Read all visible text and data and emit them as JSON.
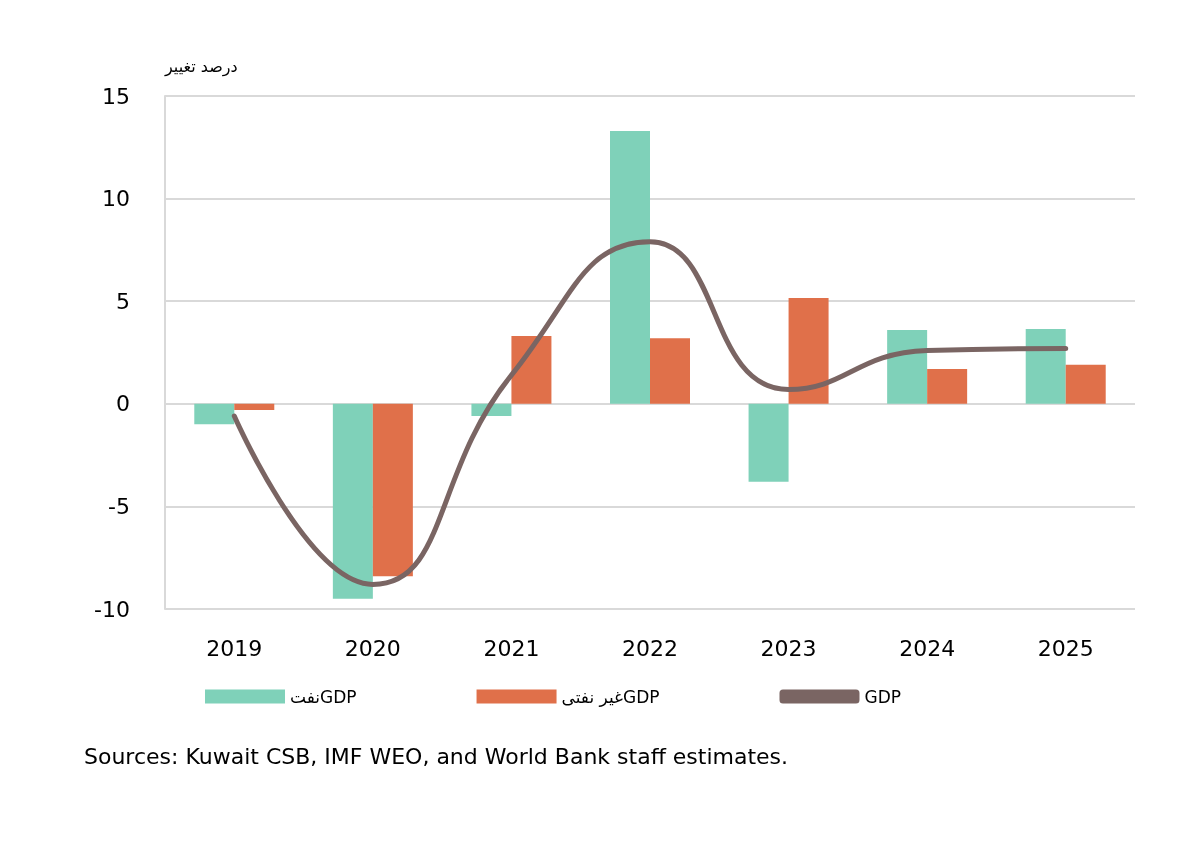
{
  "chart_data": {
    "type": "bar",
    "ylabel": "درصد تغییر",
    "categories": [
      "2019",
      "2020",
      "2021",
      "2022",
      "2023",
      "2024",
      "2025"
    ],
    "series": [
      {
        "name": "نفتGDP",
        "color": "#7fd1b9",
        "values": [
          -1.0,
          -9.5,
          -0.6,
          13.3,
          -3.8,
          3.6,
          3.65
        ]
      },
      {
        "name": "غیر نفتیGDP",
        "color": "#e0704a",
        "values": [
          -0.3,
          -8.4,
          3.3,
          3.2,
          5.15,
          1.7,
          1.9
        ]
      },
      {
        "name": "GDP",
        "type": "line",
        "color": "#7a6563",
        "values": [
          -0.6,
          -8.8,
          1.4,
          7.9,
          0.7,
          2.6,
          2.7
        ]
      }
    ],
    "ylim": [
      -10,
      15
    ],
    "yticks": [
      -10,
      -5,
      0,
      5,
      10,
      15
    ],
    "grid": "y",
    "legend": "bottom",
    "marker": "none",
    "annotations": [
      "Sources: Kuwait CSB, IMF WEO, and World Bank staff estimates."
    ]
  }
}
